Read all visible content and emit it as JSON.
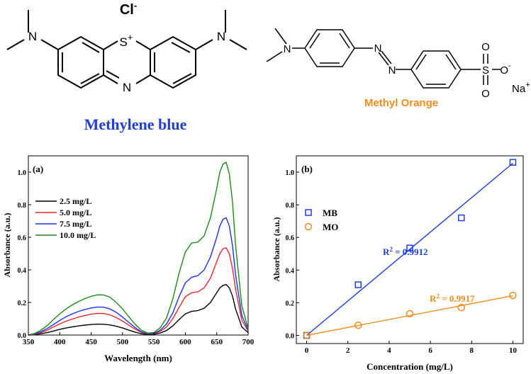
{
  "structures": {
    "mb": {
      "counter_ion": "Cl",
      "counter_charge": "-",
      "ring_s": "S",
      "ring_s_charge": "+",
      "ring_n": "N",
      "left_n": "N",
      "right_n": "N",
      "name": "Methylene blue",
      "name_color": "#1f3fd6"
    },
    "mo": {
      "amine_n": "N",
      "azo_n1": "N",
      "azo_n2": "N",
      "sulfur": "S",
      "o_top": "O",
      "o_bottom": "O",
      "o_minus": "O",
      "o_minus_charge": "-",
      "counter_ion": "Na",
      "counter_charge": "+",
      "name": "Methyl Orange",
      "name_color": "#f08c1e"
    }
  },
  "chart_data": [
    {
      "type": "line",
      "panel_label": "(a)",
      "xlabel": "Wavelength (nm)",
      "ylabel": "Absorbance (a.u.)",
      "xlim": [
        350,
        700
      ],
      "ylim": [
        0,
        1.1
      ],
      "x_ticks": [
        "350",
        "400",
        "450",
        "500",
        "550",
        "600",
        "650",
        "700"
      ],
      "y_ticks": [
        "0.0",
        "0.2",
        "0.4",
        "0.6",
        "0.8",
        "1.0"
      ],
      "legend_position": "left",
      "series": [
        {
          "name": "2.5 mg/L",
          "color": "#000000",
          "points": [
            [
              350,
              0
            ],
            [
              360,
              0.003
            ],
            [
              370,
              0.008
            ],
            [
              380,
              0.015
            ],
            [
              390,
              0.025
            ],
            [
              400,
              0.035
            ],
            [
              410,
              0.043
            ],
            [
              420,
              0.05
            ],
            [
              430,
              0.056
            ],
            [
              440,
              0.061
            ],
            [
              450,
              0.065
            ],
            [
              460,
              0.067
            ],
            [
              470,
              0.066
            ],
            [
              480,
              0.062
            ],
            [
              490,
              0.054
            ],
            [
              500,
              0.043
            ],
            [
              510,
              0.03
            ],
            [
              520,
              0.018
            ],
            [
              530,
              0.008
            ],
            [
              540,
              0.004
            ],
            [
              550,
              0.005
            ],
            [
              560,
              0.012
            ],
            [
              570,
              0.028
            ],
            [
              580,
              0.056
            ],
            [
              590,
              0.095
            ],
            [
              600,
              0.13
            ],
            [
              610,
              0.145
            ],
            [
              620,
              0.15
            ],
            [
              630,
              0.165
            ],
            [
              640,
              0.2
            ],
            [
              650,
              0.26
            ],
            [
              655,
              0.29
            ],
            [
              660,
              0.305
            ],
            [
              665,
              0.31
            ],
            [
              670,
              0.29
            ],
            [
              675,
              0.24
            ],
            [
              680,
              0.16
            ],
            [
              690,
              0.05
            ],
            [
              700,
              0.015
            ]
          ]
        },
        {
          "name": "5.0 mg/L",
          "color": "#e8282b",
          "points": [
            [
              350,
              0
            ],
            [
              360,
              0.005
            ],
            [
              370,
              0.015
            ],
            [
              380,
              0.03
            ],
            [
              390,
              0.05
            ],
            [
              400,
              0.068
            ],
            [
              410,
              0.085
            ],
            [
              420,
              0.098
            ],
            [
              430,
              0.11
            ],
            [
              440,
              0.12
            ],
            [
              450,
              0.128
            ],
            [
              460,
              0.133
            ],
            [
              470,
              0.132
            ],
            [
              480,
              0.124
            ],
            [
              490,
              0.107
            ],
            [
              500,
              0.085
            ],
            [
              510,
              0.06
            ],
            [
              520,
              0.036
            ],
            [
              530,
              0.016
            ],
            [
              540,
              0.007
            ],
            [
              550,
              0.008
            ],
            [
              560,
              0.022
            ],
            [
              570,
              0.05
            ],
            [
              580,
              0.1
            ],
            [
              590,
              0.17
            ],
            [
              600,
              0.235
            ],
            [
              610,
              0.26
            ],
            [
              620,
              0.265
            ],
            [
              630,
              0.29
            ],
            [
              640,
              0.35
            ],
            [
              650,
              0.45
            ],
            [
              655,
              0.5
            ],
            [
              660,
              0.53
            ],
            [
              665,
              0.535
            ],
            [
              670,
              0.5
            ],
            [
              675,
              0.41
            ],
            [
              680,
              0.28
            ],
            [
              690,
              0.09
            ],
            [
              700,
              0.025
            ]
          ]
        },
        {
          "name": "7.5 mg/L",
          "color": "#2030e8",
          "points": [
            [
              350,
              0
            ],
            [
              360,
              0.007
            ],
            [
              370,
              0.02
            ],
            [
              380,
              0.04
            ],
            [
              390,
              0.065
            ],
            [
              400,
              0.09
            ],
            [
              410,
              0.112
            ],
            [
              420,
              0.13
            ],
            [
              430,
              0.145
            ],
            [
              440,
              0.157
            ],
            [
              450,
              0.166
            ],
            [
              460,
              0.172
            ],
            [
              470,
              0.171
            ],
            [
              480,
              0.16
            ],
            [
              490,
              0.139
            ],
            [
              500,
              0.11
            ],
            [
              510,
              0.078
            ],
            [
              520,
              0.046
            ],
            [
              530,
              0.02
            ],
            [
              540,
              0.009
            ],
            [
              550,
              0.01
            ],
            [
              560,
              0.03
            ],
            [
              570,
              0.068
            ],
            [
              580,
              0.135
            ],
            [
              590,
              0.235
            ],
            [
              600,
              0.32
            ],
            [
              610,
              0.355
            ],
            [
              620,
              0.365
            ],
            [
              630,
              0.4
            ],
            [
              640,
              0.48
            ],
            [
              650,
              0.6
            ],
            [
              655,
              0.67
            ],
            [
              660,
              0.71
            ],
            [
              665,
              0.72
            ],
            [
              670,
              0.67
            ],
            [
              675,
              0.55
            ],
            [
              680,
              0.37
            ],
            [
              690,
              0.12
            ],
            [
              700,
              0.03
            ]
          ]
        },
        {
          "name": "10.0 mg/L",
          "color": "#1b8a1b",
          "points": [
            [
              350,
              0
            ],
            [
              360,
              0.01
            ],
            [
              370,
              0.03
            ],
            [
              380,
              0.058
            ],
            [
              390,
              0.095
            ],
            [
              400,
              0.13
            ],
            [
              410,
              0.16
            ],
            [
              420,
              0.185
            ],
            [
              430,
              0.206
            ],
            [
              440,
              0.224
            ],
            [
              450,
              0.238
            ],
            [
              460,
              0.247
            ],
            [
              470,
              0.246
            ],
            [
              480,
              0.232
            ],
            [
              490,
              0.2
            ],
            [
              500,
              0.16
            ],
            [
              510,
              0.112
            ],
            [
              520,
              0.066
            ],
            [
              530,
              0.03
            ],
            [
              540,
              0.012
            ],
            [
              550,
              0.015
            ],
            [
              560,
              0.045
            ],
            [
              570,
              0.105
            ],
            [
              580,
              0.22
            ],
            [
              590,
              0.38
            ],
            [
              600,
              0.51
            ],
            [
              610,
              0.565
            ],
            [
              620,
              0.57
            ],
            [
              630,
              0.61
            ],
            [
              640,
              0.72
            ],
            [
              650,
              0.9
            ],
            [
              655,
              1.0
            ],
            [
              660,
              1.05
            ],
            [
              665,
              1.06
            ],
            [
              670,
              0.99
            ],
            [
              675,
              0.82
            ],
            [
              680,
              0.55
            ],
            [
              690,
              0.18
            ],
            [
              700,
              0.04
            ]
          ]
        }
      ]
    },
    {
      "type": "scatter",
      "panel_label": "(b)",
      "xlabel": "Concentration (mg/L)",
      "ylabel": "Absorbance (a.u.)",
      "xlim": [
        -0.5,
        10.5
      ],
      "ylim": [
        -0.05,
        1.1
      ],
      "x_ticks": [
        "0",
        "2",
        "4",
        "6",
        "8",
        "10"
      ],
      "y_ticks": [
        "0.0",
        "0.2",
        "0.4",
        "0.6",
        "0.8",
        "1.0"
      ],
      "legend_position": "upper-left",
      "series": [
        {
          "name": "MB",
          "marker": "square",
          "color": "#1f3fd6",
          "x": [
            0,
            2.5,
            5.0,
            7.5,
            10.0
          ],
          "y": [
            0.0,
            0.31,
            0.535,
            0.72,
            1.06
          ],
          "fit_line": [
            [
              0,
              0.0
            ],
            [
              10,
              1.055
            ]
          ],
          "r2_label": "R",
          "r2_sup": "2",
          "r2_value": " = 0.9912"
        },
        {
          "name": "MO",
          "marker": "circle",
          "color": "#f08c1e",
          "x": [
            0,
            2.5,
            5.0,
            7.5,
            10.0
          ],
          "y": [
            0.0,
            0.062,
            0.132,
            0.17,
            0.245
          ],
          "fit_line": [
            [
              0,
              0.0
            ],
            [
              10,
              0.243
            ]
          ],
          "r2_label": "R",
          "r2_sup": "2",
          "r2_value": " = 0.9917"
        }
      ]
    }
  ]
}
